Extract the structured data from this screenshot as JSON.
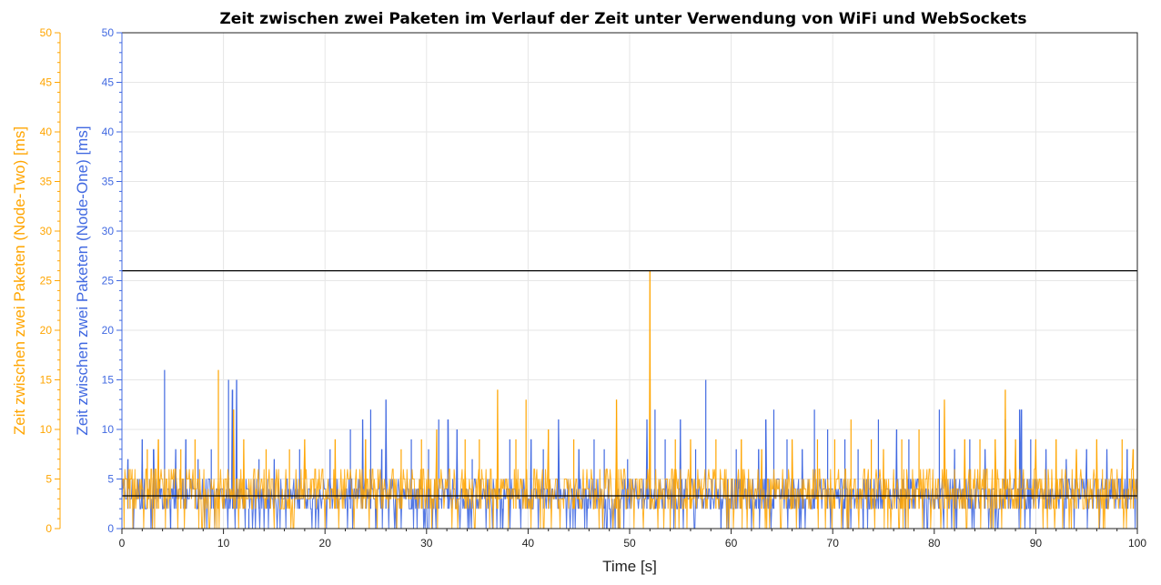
{
  "chart_data": {
    "type": "line",
    "title": "Zeit zwischen zwei Paketen im Verlauf der Zeit unter Verwendung von WiFi und WebSockets",
    "xlabel": "Time [s]",
    "ylabel_left_outer": "Zeit zwischen zwei Paketen (Node-Two) [ms]",
    "ylabel_left_inner": "Zeit zwischen zwei Paketen (Node-One) [ms]",
    "xlim": [
      0,
      100
    ],
    "ylim": [
      0,
      50
    ],
    "x_ticks": [
      "0",
      "10",
      "20",
      "30",
      "40",
      "50",
      "60",
      "70",
      "80",
      "90",
      "100"
    ],
    "y_ticks": [
      "0",
      "5",
      "10",
      "15",
      "20",
      "25",
      "30",
      "35",
      "40",
      "45",
      "50"
    ],
    "grid": true,
    "colors": {
      "node_one": "#4169e1",
      "node_two": "#ffa500",
      "reference": "#000000",
      "grid": "#e6e6e6"
    },
    "reference_lines": [
      {
        "y": 26
      },
      {
        "y": 3.3
      }
    ],
    "series": [
      {
        "axis": "left_inner",
        "color": "#4169e1",
        "baseline": [
          2,
          5
        ],
        "spikes": [
          [
            0.6,
            7
          ],
          [
            1.1,
            0
          ],
          [
            2.0,
            9
          ],
          [
            3.0,
            0
          ],
          [
            3.1,
            8
          ],
          [
            4.2,
            16
          ],
          [
            4.8,
            0
          ],
          [
            5.3,
            8
          ],
          [
            6.3,
            9
          ],
          [
            7.5,
            7
          ],
          [
            8.8,
            8
          ],
          [
            10.5,
            15
          ],
          [
            10.9,
            14
          ],
          [
            11.3,
            15
          ],
          [
            12.5,
            0
          ],
          [
            13.5,
            7
          ],
          [
            15.0,
            7
          ],
          [
            17.5,
            8
          ],
          [
            20.5,
            8
          ],
          [
            22.5,
            10
          ],
          [
            23.7,
            11
          ],
          [
            24.5,
            12
          ],
          [
            25.0,
            0
          ],
          [
            25.6,
            8
          ],
          [
            26.0,
            13
          ],
          [
            28.5,
            9
          ],
          [
            30.2,
            8
          ],
          [
            31.2,
            11
          ],
          [
            32.1,
            11
          ],
          [
            33.0,
            10
          ],
          [
            34.5,
            7
          ],
          [
            37.5,
            0
          ],
          [
            38.2,
            9
          ],
          [
            40.3,
            9
          ],
          [
            41.5,
            8
          ],
          [
            43.0,
            11
          ],
          [
            45.0,
            8
          ],
          [
            46.5,
            9
          ],
          [
            47.5,
            8
          ],
          [
            49.8,
            7
          ],
          [
            51.7,
            11
          ],
          [
            52.5,
            12
          ],
          [
            53.5,
            9
          ],
          [
            55.0,
            11
          ],
          [
            56.5,
            8
          ],
          [
            57.5,
            15
          ],
          [
            59.0,
            0
          ],
          [
            60.5,
            8
          ],
          [
            62.7,
            8
          ],
          [
            63.4,
            11
          ],
          [
            64.2,
            12
          ],
          [
            65.5,
            9
          ],
          [
            67.0,
            8
          ],
          [
            68.2,
            12
          ],
          [
            69.5,
            10
          ],
          [
            71.2,
            9
          ],
          [
            72.5,
            8
          ],
          [
            73.0,
            0
          ],
          [
            74.5,
            11
          ],
          [
            76.3,
            10
          ],
          [
            77.5,
            9
          ],
          [
            80.5,
            12
          ],
          [
            82.0,
            8
          ],
          [
            83.5,
            9
          ],
          [
            85.0,
            8
          ],
          [
            87.0,
            11
          ],
          [
            88.4,
            12
          ],
          [
            88.6,
            12
          ],
          [
            89.5,
            9
          ],
          [
            91.0,
            8
          ],
          [
            93.0,
            7
          ],
          [
            95.0,
            8
          ],
          [
            97.0,
            8
          ],
          [
            99.0,
            8
          ]
        ]
      },
      {
        "axis": "left_outer",
        "color": "#ffa500",
        "baseline": [
          2,
          6
        ],
        "spikes": [
          [
            0.8,
            6
          ],
          [
            2.5,
            8
          ],
          [
            3.6,
            9
          ],
          [
            5.8,
            8
          ],
          [
            7.2,
            9
          ],
          [
            9.5,
            16
          ],
          [
            11.0,
            12
          ],
          [
            12.0,
            9
          ],
          [
            14.2,
            8
          ],
          [
            16.5,
            8
          ],
          [
            18.0,
            9
          ],
          [
            21.0,
            9
          ],
          [
            24.0,
            9
          ],
          [
            27.5,
            8
          ],
          [
            29.5,
            9
          ],
          [
            31.0,
            10
          ],
          [
            33.8,
            9
          ],
          [
            35.2,
            9
          ],
          [
            37.0,
            14
          ],
          [
            38.8,
            9
          ],
          [
            39.8,
            13
          ],
          [
            42.0,
            10
          ],
          [
            44.5,
            9
          ],
          [
            48.7,
            13
          ],
          [
            52.0,
            26
          ],
          [
            54.5,
            9
          ],
          [
            56.0,
            9
          ],
          [
            58.5,
            9
          ],
          [
            61.0,
            9
          ],
          [
            63.0,
            8
          ],
          [
            66.0,
            9
          ],
          [
            68.5,
            9
          ],
          [
            70.2,
            9
          ],
          [
            71.8,
            11
          ],
          [
            73.8,
            9
          ],
          [
            75.0,
            8
          ],
          [
            76.8,
            9
          ],
          [
            78.5,
            10
          ],
          [
            81.0,
            13
          ],
          [
            83.0,
            9
          ],
          [
            84.5,
            9
          ],
          [
            86.0,
            9
          ],
          [
            87.0,
            14
          ],
          [
            88.0,
            9
          ],
          [
            90.0,
            9
          ],
          [
            92.0,
            9
          ],
          [
            94.0,
            8
          ],
          [
            96.0,
            9
          ],
          [
            98.5,
            9
          ],
          [
            99.6,
            8
          ]
        ]
      }
    ]
  }
}
